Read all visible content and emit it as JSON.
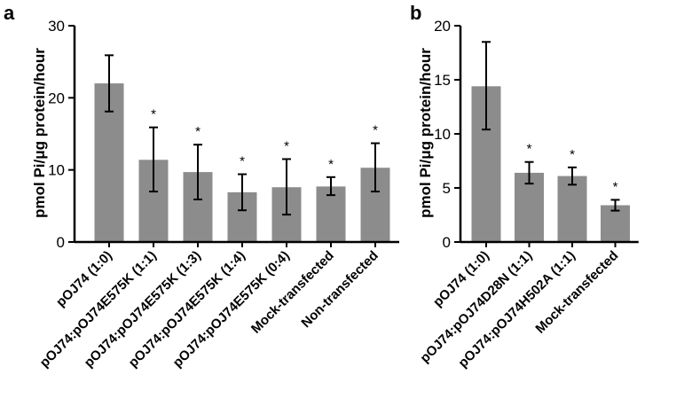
{
  "colors": {
    "bar": "#8c8c8c",
    "axis": "#000000"
  },
  "chart_data": [
    {
      "type": "bar",
      "panel_label": "a",
      "ylabel": "pmol Pi/μg protein/hour",
      "ylim": [
        0,
        30
      ],
      "yticks": [
        0,
        10,
        20,
        30
      ],
      "categories": [
        "pOJ74 (1:0)",
        "pOJ74:pOJ74E575K (1:1)",
        "pOJ74:pOJ74E575K (1:3)",
        "pOJ74:pOJ74E575K (1:4)",
        "pOJ74:pOJ74E575K (0:4)",
        "Mock-transfected",
        "Non-transfected"
      ],
      "values": [
        22.0,
        11.4,
        9.7,
        6.9,
        7.6,
        7.7,
        10.3
      ],
      "error_low": [
        18.1,
        7.0,
        5.9,
        4.4,
        3.8,
        6.5,
        7.0
      ],
      "error_high": [
        25.9,
        15.9,
        13.5,
        9.4,
        11.5,
        9.0,
        13.7
      ],
      "significance": [
        "",
        "*",
        "*",
        "*",
        "*",
        "*",
        "*"
      ]
    },
    {
      "type": "bar",
      "panel_label": "b",
      "ylabel": "pmol Pi/μg protein/hour",
      "ylim": [
        0,
        20
      ],
      "yticks": [
        0,
        5,
        10,
        15,
        20
      ],
      "categories": [
        "pOJ74 (1:0)",
        "pOJ74:pOJ74D28N (1:1)",
        "pOJ74:pOJ74H502A (1:1)",
        "Mock-transfected"
      ],
      "values": [
        14.4,
        6.4,
        6.1,
        3.4
      ],
      "error_low": [
        10.4,
        5.4,
        5.3,
        2.9
      ],
      "error_high": [
        18.5,
        7.4,
        6.9,
        3.9
      ],
      "significance": [
        "",
        "*",
        "*",
        "*"
      ]
    }
  ]
}
